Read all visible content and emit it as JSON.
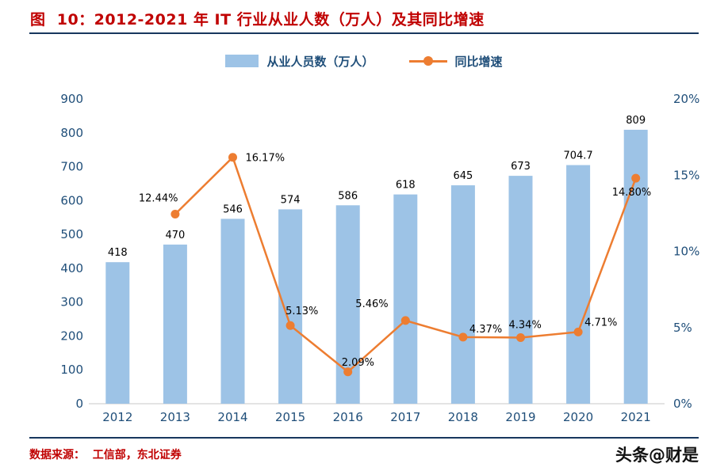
{
  "header": {
    "title": "图  10：2012-2021 年 IT 行业从业人数（万人）及其同比增速"
  },
  "legend": {
    "bars": "从业人员数（万人）",
    "line": "同比增速"
  },
  "chart_data": {
    "type": "bar",
    "subtype": "bar-line-combo",
    "title": "2012-2021 年 IT 行业从业人数（万人）及其同比增速",
    "categories": [
      "2012",
      "2013",
      "2014",
      "2015",
      "2016",
      "2017",
      "2018",
      "2019",
      "2020",
      "2021"
    ],
    "series": [
      {
        "name": "从业人员数（万人）",
        "type": "bar",
        "axis": "left",
        "values": [
          418,
          470,
          546,
          574,
          586,
          618,
          645,
          673,
          704.7,
          809
        ],
        "labels": [
          "418",
          "470",
          "546",
          "574",
          "586",
          "618",
          "645",
          "673",
          "704.7",
          "809"
        ]
      },
      {
        "name": "同比增速",
        "type": "line",
        "axis": "right",
        "values": [
          null,
          12.44,
          16.17,
          5.13,
          2.09,
          5.46,
          4.37,
          4.34,
          4.71,
          14.8
        ],
        "labels": [
          null,
          "12.44%",
          "16.17%",
          "5.13%",
          "2.09%",
          "5.46%",
          "4.37%",
          "4.34%",
          "4.71%",
          "14.80%"
        ],
        "label_offsets": [
          null,
          [
            -46,
            -16
          ],
          [
            16,
            5
          ],
          [
            -6,
            -14
          ],
          [
            -8,
            -8
          ],
          [
            -63,
            -17
          ],
          [
            8,
            -6
          ],
          [
            -15,
            -12
          ],
          [
            8,
            -8
          ],
          [
            -30,
            22
          ]
        ]
      }
    ],
    "left_axis": {
      "min": 0,
      "max": 900,
      "step": 100,
      "ticks": [
        "0",
        "100",
        "200",
        "300",
        "400",
        "500",
        "600",
        "700",
        "800",
        "900"
      ]
    },
    "right_axis": {
      "min": 0,
      "max": 20,
      "step": 5,
      "ticks": [
        "0%",
        "5%",
        "10%",
        "15%",
        "20%"
      ]
    },
    "grid": false,
    "legend_position": "top",
    "colors": {
      "bar": "#9DC3E6",
      "line": "#ED7D31",
      "axis_text": "#1F4E79"
    }
  },
  "footer": {
    "source": "数据来源：  工信部，东北证券",
    "watermark": "头条@财是"
  }
}
